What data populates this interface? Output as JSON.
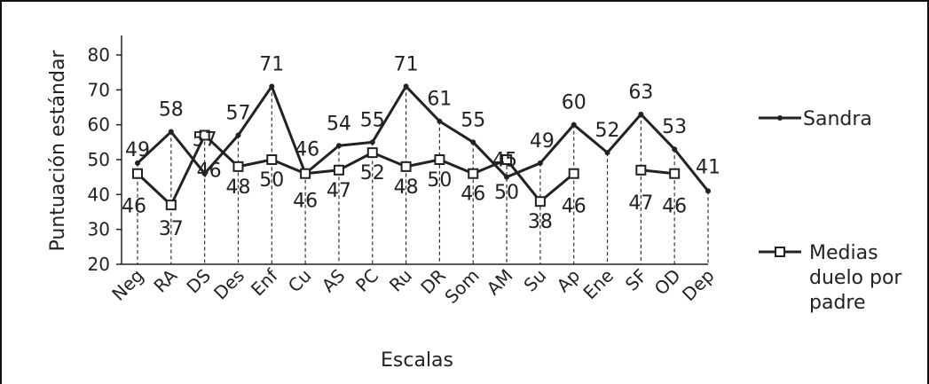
{
  "chart_data": {
    "type": "line",
    "title": "",
    "xlabel": "Escalas",
    "ylabel": "Puntuación estándar",
    "ylim": [
      20,
      80
    ],
    "yticks": [
      20,
      30,
      40,
      50,
      60,
      70,
      80
    ],
    "grid": "vertical dashed droplines",
    "legend_position": "right",
    "categories": [
      "Neg",
      "RA",
      "DS",
      "Des",
      "Enf",
      "Cu",
      "AS",
      "PC",
      "Ru",
      "DR",
      "Som",
      "AM",
      "Su",
      "Ap",
      "Ene",
      "SF",
      "OD",
      "Dep"
    ],
    "series": [
      {
        "name": "Sandra",
        "marker": "dot",
        "color": "#222222",
        "values": [
          49,
          58,
          46,
          57,
          71,
          46,
          54,
          55,
          71,
          61,
          55,
          45,
          49,
          60,
          52,
          63,
          53,
          41
        ]
      },
      {
        "name": "Medias duelo por padre",
        "marker": "square",
        "color": "#222222",
        "values": [
          46,
          37,
          57,
          48,
          50,
          46,
          47,
          52,
          48,
          50,
          46,
          50,
          38,
          46,
          null,
          47,
          46,
          null
        ]
      }
    ],
    "data_labels": {
      "Sandra": [
        "49",
        "58",
        "46",
        "57",
        "71",
        "46",
        "54",
        "55",
        "71",
        "61",
        "55",
        "45",
        "49",
        "60",
        "52",
        "63",
        "53",
        "41"
      ],
      "Medias duelo por padre": [
        "46",
        "37",
        "57",
        "48",
        "50",
        "46",
        "47",
        "52",
        "48",
        "50",
        "46",
        "50",
        "38",
        "46",
        "",
        "47",
        "46",
        ""
      ]
    },
    "legend_lines": {
      "Sandra": [
        "Sandra"
      ],
      "Medias duelo por padre": [
        "Medias",
        "duelo por",
        "padre"
      ]
    }
  }
}
